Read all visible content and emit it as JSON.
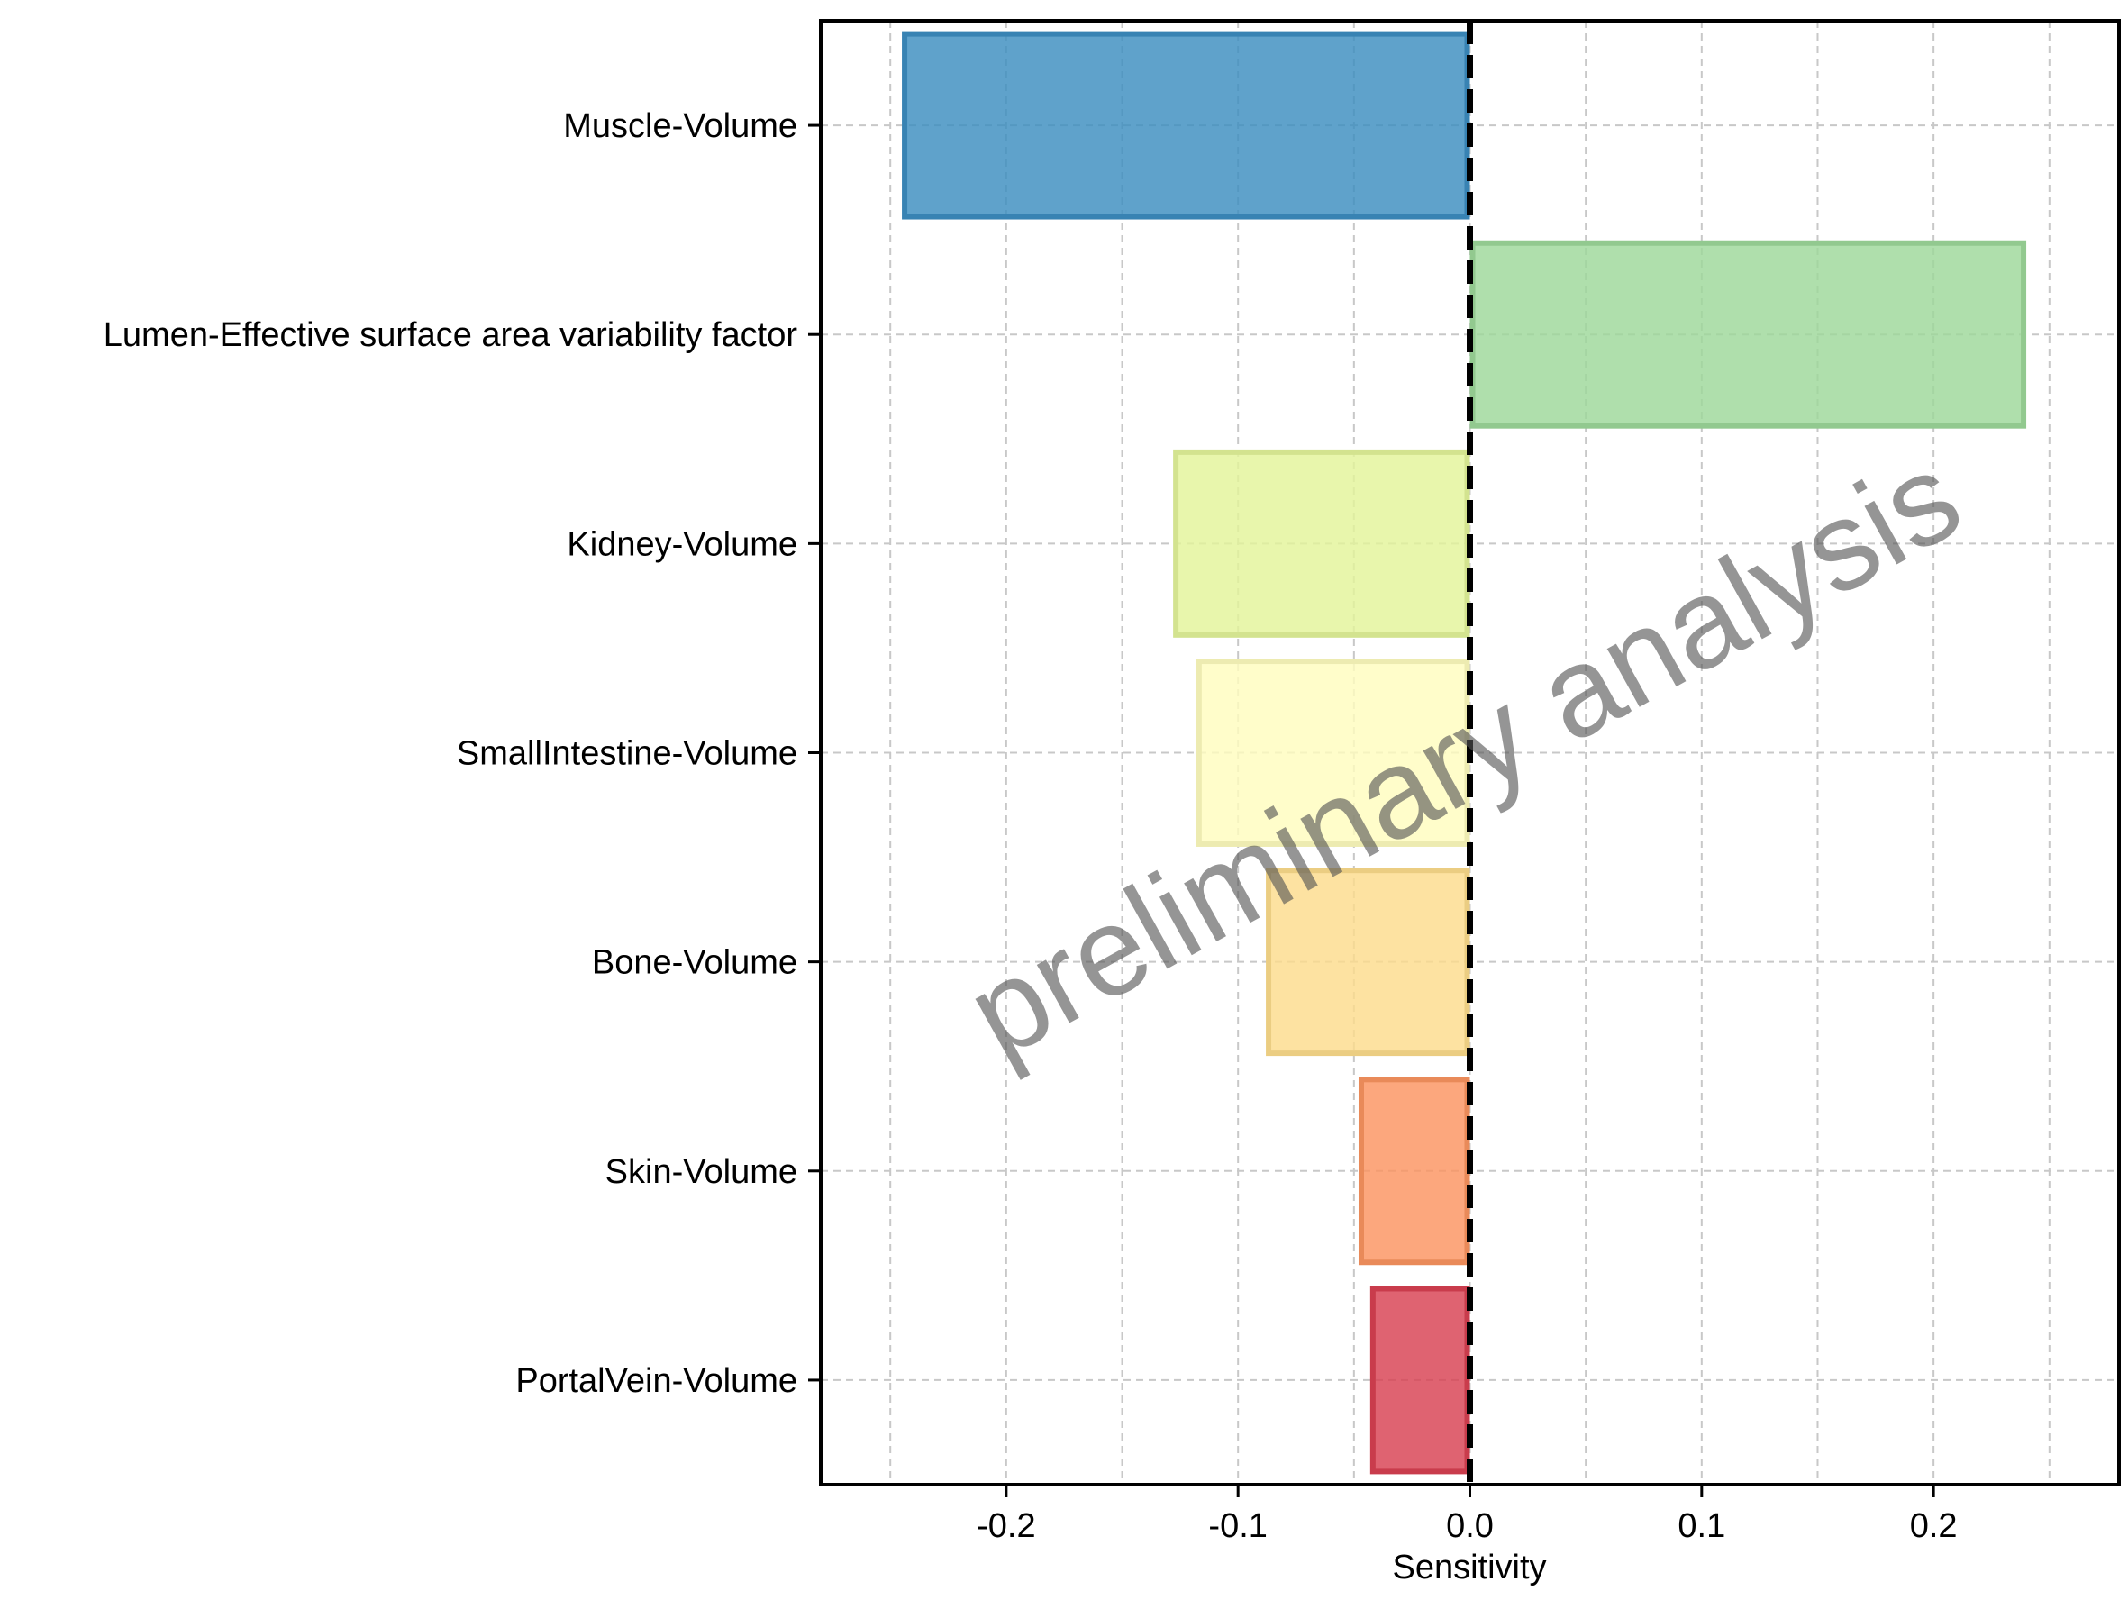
{
  "chart_data": {
    "type": "bar",
    "orientation": "horizontal",
    "categories": [
      "Muscle-Volume",
      "Lumen-Effective surface area variability factor",
      "Kidney-Volume",
      "SmallIntestine-Volume",
      "Bone-Volume",
      "Skin-Volume",
      "PortalVein-Volume"
    ],
    "values": [
      -0.245,
      0.24,
      -0.128,
      -0.118,
      -0.088,
      -0.048,
      -0.043
    ],
    "colors": [
      "#3C8DC0",
      "#9DD89A",
      "#E3F49A",
      "#FFFDBE",
      "#FDDC8C",
      "#FB9460",
      "#D84152"
    ],
    "title": "",
    "xlabel": "Sensitivity",
    "ylabel": "",
    "xlim": [
      -0.28,
      0.28
    ],
    "xticks": [
      -0.2,
      -0.1,
      0.0,
      0.1,
      0.2
    ],
    "xtick_labels": [
      "-0.2",
      "-0.1",
      "0.0",
      "0.1",
      "0.2"
    ],
    "grid": true,
    "reference_line": {
      "x": 0,
      "style": "dashed",
      "color": "#000000"
    },
    "watermark": "preliminary analysis"
  }
}
